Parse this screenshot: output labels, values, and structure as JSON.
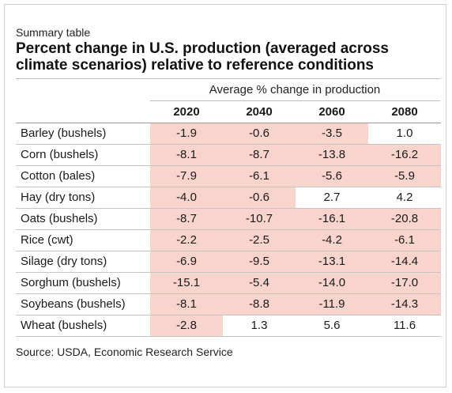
{
  "kicker": "Summary table",
  "title": "Percent change in U.S. production (averaged across climate scenarios) relative to reference conditions",
  "source": "Source: USDA, Economic Research Service",
  "chart_data": {
    "type": "table",
    "title": "Percent change in U.S. production (averaged across climate scenarios) relative to reference conditions",
    "column_group": "Average % change in production",
    "columns": [
      "2020",
      "2040",
      "2060",
      "2080"
    ],
    "negative_color": "#f9d4cc",
    "rows": [
      {
        "label": "Barley (bushels)",
        "values": [
          -1.9,
          -0.6,
          -3.5,
          1.0
        ],
        "display": [
          "-1.9",
          "-0.6",
          "-3.5",
          "1.0"
        ]
      },
      {
        "label": "Corn (bushels)",
        "values": [
          -8.1,
          -8.7,
          -13.8,
          -16.2
        ],
        "display": [
          "-8.1",
          "-8.7",
          "-13.8",
          "-16.2"
        ]
      },
      {
        "label": "Cotton (bales)",
        "values": [
          -7.9,
          -6.1,
          -5.6,
          -5.9
        ],
        "display": [
          "-7.9",
          "-6.1",
          "-5.6",
          "-5.9"
        ]
      },
      {
        "label": "Hay (dry tons)",
        "values": [
          -4.0,
          -0.6,
          2.7,
          4.2
        ],
        "display": [
          "-4.0",
          "-0.6",
          "2.7",
          "4.2"
        ]
      },
      {
        "label": "Oats (bushels)",
        "values": [
          -8.7,
          -10.7,
          -16.1,
          -20.8
        ],
        "display": [
          "-8.7",
          "-10.7",
          "-16.1",
          "-20.8"
        ]
      },
      {
        "label": "Rice (cwt)",
        "values": [
          -2.2,
          -2.5,
          -4.2,
          -6.1
        ],
        "display": [
          "-2.2",
          "-2.5",
          "-4.2",
          "-6.1"
        ]
      },
      {
        "label": "Silage (dry tons)",
        "values": [
          -6.9,
          -9.5,
          -13.1,
          -14.4
        ],
        "display": [
          "-6.9",
          "-9.5",
          "-13.1",
          "-14.4"
        ]
      },
      {
        "label": "Sorghum (bushels)",
        "values": [
          -15.1,
          -5.4,
          -14.0,
          -17.0
        ],
        "display": [
          "-15.1",
          "-5.4",
          "-14.0",
          "-17.0"
        ]
      },
      {
        "label": "Soybeans (bushels)",
        "values": [
          -8.1,
          -8.8,
          -11.9,
          -14.3
        ],
        "display": [
          "-8.1",
          "-8.8",
          "-11.9",
          "-14.3"
        ]
      },
      {
        "label": "Wheat (bushels)",
        "values": [
          -2.8,
          1.3,
          5.6,
          11.6
        ],
        "display": [
          "-2.8",
          "1.3",
          "5.6",
          "11.6"
        ]
      }
    ]
  }
}
